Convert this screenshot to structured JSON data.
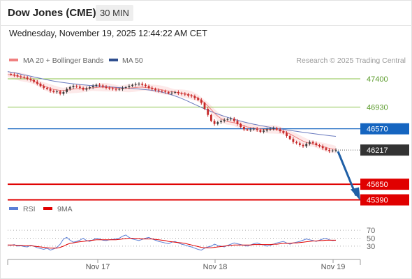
{
  "header": {
    "symbol": "Dow Jones (CME)",
    "interval": "30 MIN"
  },
  "datetime": "Wednesday, November 19, 2025 12:44:22 AM CET",
  "legend": {
    "ma20_label": "MA 20 + Bollinger Bands",
    "ma50_label": "MA 50",
    "credit": "Research © 2025 Trading Central"
  },
  "colors": {
    "candle_up": "#3d3d3d",
    "candle_down": "#c62828",
    "ma20": "#f08080",
    "bollinger_fill": "#fde7e7",
    "ma50": "#6a7bbf",
    "resistance": "#8bc34a",
    "pivot": "#1565c0",
    "support": "#e00000",
    "last_price_tag": "#333333",
    "forecast_arrow": "#1f5fa6",
    "rsi": "#5b7fd6",
    "rsi_ma": "#e00000"
  },
  "chart_data": [
    {
      "type": "line",
      "name": "price",
      "x_ticks": [
        "Nov 17",
        "Nov 18",
        "Nov 19"
      ],
      "ylim": [
        45350,
        47550
      ],
      "levels": [
        {
          "value": 47400,
          "label": "47400",
          "kind": "resistance"
        },
        {
          "value": 46930,
          "label": "46930",
          "kind": "resistance"
        },
        {
          "value": 46570,
          "label": "46570",
          "kind": "pivot"
        },
        {
          "value": 45650,
          "label": "45650",
          "kind": "support"
        },
        {
          "value": 45390,
          "label": "45390",
          "kind": "support"
        }
      ],
      "last_price": 46217,
      "last_price_label": "46217",
      "forecast_target": 45390,
      "series": [
        {
          "name": "Price",
          "values": [
            47480,
            47470,
            47460,
            47440,
            47430,
            47420,
            47400,
            47380,
            47350,
            47320,
            47280,
            47250,
            47230,
            47200,
            47180,
            47190,
            47150,
            47180,
            47230,
            47260,
            47280,
            47270,
            47250,
            47220,
            47240,
            47260,
            47280,
            47300,
            47290,
            47270,
            47250,
            47240,
            47230,
            47220,
            47230,
            47250,
            47260,
            47280,
            47300,
            47310,
            47320,
            47300,
            47280,
            47250,
            47230,
            47210,
            47200,
            47190,
            47180,
            47160,
            47170,
            47180,
            47160,
            47150,
            47140,
            47120,
            47110,
            47080,
            47050,
            47000,
            46900,
            46800,
            46700,
            46650,
            46680,
            46700,
            46720,
            46730,
            46740,
            46700,
            46650,
            46600,
            46560,
            46550,
            46560,
            46570,
            46550,
            46520,
            46540,
            46560,
            46570,
            46580,
            46560,
            46530,
            46500,
            46450,
            46400,
            46350,
            46330,
            46300,
            46280,
            46320,
            46350,
            46330,
            46300,
            46280,
            46250,
            46220,
            46200,
            46210,
            46217
          ]
        },
        {
          "name": "MA 20",
          "values": [
            47470,
            47465,
            47455,
            47445,
            47430,
            47420,
            47405,
            47385,
            47360,
            47335,
            47305,
            47280,
            47260,
            47240,
            47225,
            47215,
            47205,
            47205,
            47210,
            47220,
            47230,
            47235,
            47240,
            47240,
            47240,
            47245,
            47250,
            47255,
            47260,
            47260,
            47260,
            47255,
            47250,
            47245,
            47240,
            47240,
            47240,
            47245,
            47250,
            47255,
            47260,
            47260,
            47255,
            47250,
            47245,
            47235,
            47225,
            47215,
            47205,
            47195,
            47185,
            47180,
            47170,
            47160,
            47150,
            47140,
            47125,
            47105,
            47080,
            47045,
            47000,
            46950,
            46890,
            46830,
            46780,
            46740,
            46710,
            46690,
            46680,
            46670,
            46655,
            46640,
            46620,
            46600,
            46590,
            46585,
            46575,
            46565,
            46560,
            46560,
            46560,
            46560,
            46555,
            46545,
            46530,
            46510,
            46485,
            46455,
            46425,
            46395,
            46365,
            46345,
            46330,
            46320,
            46305,
            46290,
            46275,
            46260,
            46245,
            46235,
            46225
          ]
        },
        {
          "name": "MA 50",
          "values": [
            47520,
            47510,
            47500,
            47490,
            47478,
            47466,
            47454,
            47442,
            47430,
            47418,
            47406,
            47394,
            47383,
            47372,
            47362,
            47353,
            47345,
            47337,
            47330,
            47323,
            47317,
            47311,
            47305,
            47300,
            47295,
            47290,
            47286,
            47282,
            47278,
            47274,
            47270,
            47266,
            47262,
            47258,
            47254,
            47250,
            47246,
            47242,
            47238,
            47234,
            47230,
            47225,
            47220,
            47214,
            47208,
            47200,
            47190,
            47178,
            47165,
            47150,
            47133,
            47115,
            47095,
            47073,
            47050,
            47025,
            47000,
            46975,
            46950,
            46925,
            46900,
            46878,
            46856,
            46835,
            46815,
            46796,
            46778,
            46760,
            46743,
            46727,
            46712,
            46697,
            46683,
            46670,
            46658,
            46646,
            46635,
            46624,
            46614,
            46604,
            46595,
            46586,
            46577,
            46568,
            46560,
            46552,
            46544,
            46536,
            46528,
            46520,
            46512,
            46505,
            46498,
            46491,
            46484,
            46477,
            46470,
            46463,
            46456,
            46450,
            46444
          ]
        }
      ]
    },
    {
      "type": "line",
      "name": "rsi",
      "ylim": [
        0,
        100
      ],
      "y_ticks": [
        70,
        50,
        30
      ],
      "series": [
        {
          "name": "RSI",
          "values": [
            33,
            32,
            34,
            30,
            31,
            29,
            28,
            32,
            30,
            26,
            24,
            22,
            25,
            20,
            23,
            27,
            35,
            48,
            52,
            45,
            40,
            42,
            45,
            50,
            44,
            42,
            46,
            50,
            48,
            45,
            44,
            46,
            47,
            48,
            50,
            55,
            58,
            52,
            48,
            46,
            44,
            47,
            50,
            52,
            48,
            45,
            42,
            40,
            38,
            36,
            40,
            42,
            38,
            35,
            33,
            30,
            28,
            25,
            22,
            20,
            25,
            28,
            30,
            35,
            32,
            30,
            28,
            32,
            35,
            38,
            36,
            34,
            32,
            30,
            33,
            36,
            38,
            35,
            33,
            30,
            32,
            35,
            38,
            40,
            42,
            38,
            35,
            38,
            40,
            42,
            45,
            48,
            46,
            44,
            42,
            45,
            48,
            50,
            46,
            44,
            45
          ]
        },
        {
          "name": "9MA",
          "values": [
            33,
            33,
            33,
            32,
            32,
            31,
            31,
            31,
            30,
            29,
            28,
            27,
            26,
            25,
            25,
            25,
            27,
            30,
            34,
            37,
            38,
            40,
            41,
            42,
            43,
            44,
            45,
            46,
            46,
            46,
            46,
            46,
            46,
            46,
            47,
            48,
            49,
            50,
            50,
            50,
            49,
            48,
            48,
            48,
            48,
            47,
            46,
            45,
            44,
            42,
            41,
            40,
            39,
            38,
            37,
            35,
            33,
            31,
            29,
            27,
            26,
            26,
            26,
            27,
            28,
            29,
            30,
            31,
            32,
            33,
            33,
            33,
            33,
            33,
            33,
            34,
            34,
            34,
            34,
            34,
            34,
            35,
            35,
            36,
            37,
            37,
            37,
            38,
            38,
            39,
            40,
            41,
            42,
            43,
            43,
            44,
            44,
            45,
            45,
            45,
            45
          ]
        }
      ]
    }
  ]
}
